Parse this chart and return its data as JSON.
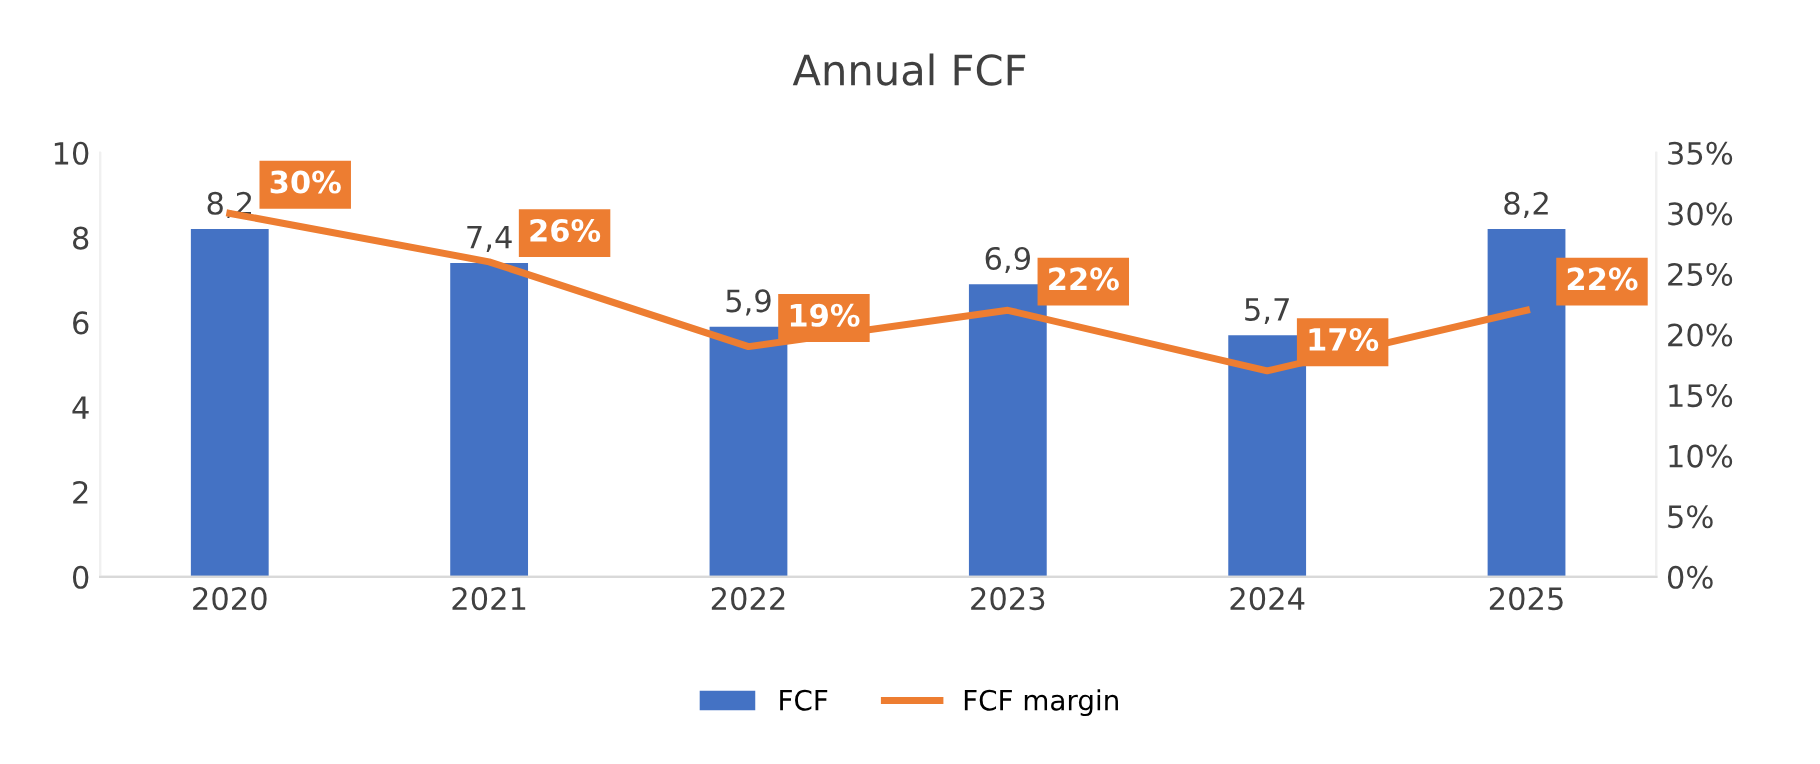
{
  "chart_data": {
    "type": "bar",
    "title": "Annual FCF",
    "categories": [
      "2020",
      "2021",
      "2022",
      "2023",
      "2024",
      "2025"
    ],
    "series": [
      {
        "name": "FCF",
        "color": "#4472c4",
        "values": [
          8.2,
          7.4,
          5.9,
          6.9,
          5.7,
          8.2
        ],
        "value_labels": [
          "8,2",
          "7,4",
          "5,9",
          "6,9",
          "5,7",
          "8,2"
        ]
      },
      {
        "name": "FCF margin",
        "type": "line",
        "axis": "y2",
        "color": "#ed7d31",
        "values": [
          30,
          26,
          19,
          22,
          17,
          22
        ],
        "value_labels": [
          "30%",
          "26%",
          "19%",
          "22%",
          "17%",
          "22%"
        ]
      }
    ],
    "ylim": [
      0,
      10
    ],
    "yticks": [
      0,
      2,
      4,
      6,
      8,
      10
    ],
    "y2lim": [
      0,
      35
    ],
    "y2ticks": [
      {
        "value": 0,
        "label": "0%"
      },
      {
        "value": 5,
        "label": "5%"
      },
      {
        "value": 10,
        "label": "10%"
      },
      {
        "value": 15,
        "label": "15%"
      },
      {
        "value": 20,
        "label": "20%"
      },
      {
        "value": 25,
        "label": "25%"
      },
      {
        "value": 30,
        "label": "30%"
      },
      {
        "value": 35,
        "label": "35%"
      }
    ],
    "legend": "bottom",
    "grid": false,
    "marker": "none",
    "line_style": "solid"
  }
}
